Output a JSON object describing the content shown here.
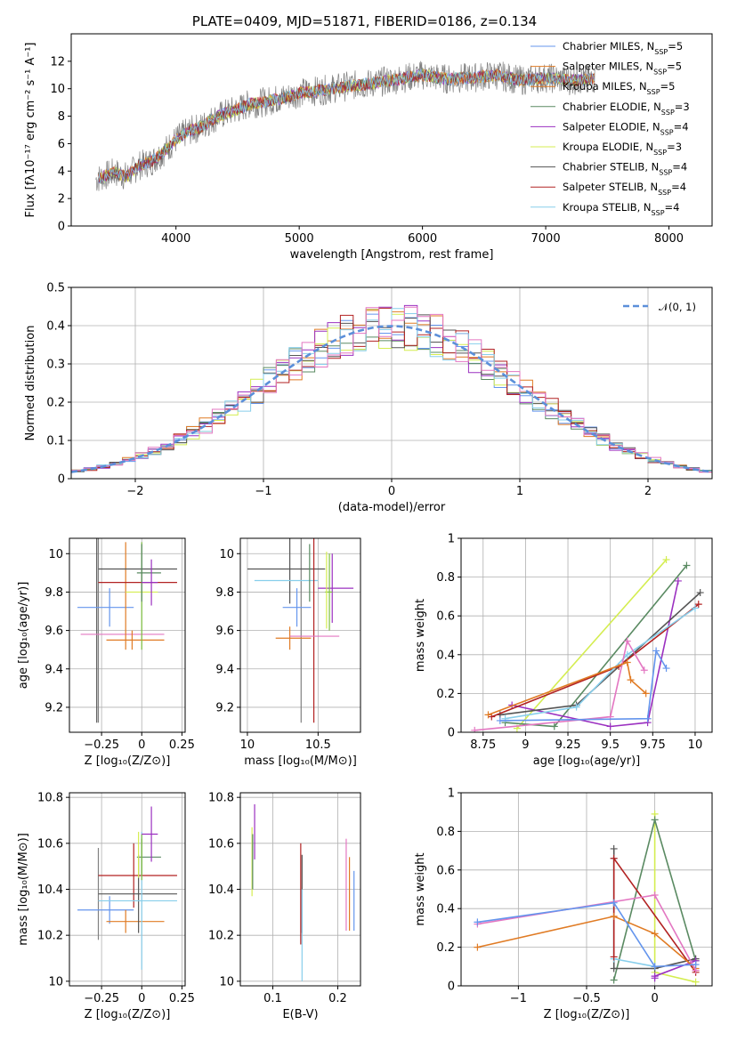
{
  "figure": {
    "title": "PLATE=0409, MJD=51871, FIBERID=0186, z=0.134"
  },
  "colors": {
    "c1": "#6495ed",
    "c2": "#e07b24",
    "c3": "#5a8a62",
    "c4": "#9b30c0",
    "c5": "#d4ed50",
    "c6": "#555555",
    "c7": "#b22222",
    "c8": "#87ceeb",
    "c9": "#e377c2",
    "c10": "#7fbf3f",
    "c11": "#808080"
  },
  "chart_data": [
    {
      "id": "spectrum",
      "type": "line",
      "xlabel": "wavelength [Angstrom, rest frame]",
      "ylabel": "Flux [fλ10⁻¹⁷ erg cm⁻² s⁻¹ A⁻¹]",
      "xlim": [
        3150,
        8350
      ],
      "ylim": [
        0,
        14
      ],
      "xticks": [
        4000,
        5000,
        6000,
        7000,
        8000
      ],
      "yticks": [
        0,
        2,
        4,
        6,
        8,
        10,
        12
      ],
      "legend_position": "top-right",
      "legend": [
        "Chabrier MILES, N_SSP=5",
        "Salpeter MILES, N_SSP=5",
        "Kroupa MILES, N_SSP=5",
        "Chabrier ELODIE, N_SSP=3",
        "Salpeter ELODIE, N_SSP=4",
        "Kroupa ELODIE, N_SSP=3",
        "Chabrier STELIB, N_SSP=4",
        "Salpeter STELIB, N_SSP=4",
        "Kroupa STELIB, N_SSP=4"
      ],
      "legend_display": [
        [
          "Chabrier MILES, N",
          "SSP",
          "=5"
        ],
        [
          "Salpeter MILES, N",
          "SSP",
          "=5"
        ],
        [
          "Kroupa MILES, N",
          "SSP",
          "=5"
        ],
        [
          "Chabrier ELODIE, N",
          "SSP",
          "=3"
        ],
        [
          "Salpeter ELODIE, N",
          "SSP",
          "=4"
        ],
        [
          "Kroupa ELODIE, N",
          "SSP",
          "=3"
        ],
        [
          "Chabrier STELIB, N",
          "SSP",
          "=4"
        ],
        [
          "Salpeter STELIB, N",
          "SSP",
          "=4"
        ],
        [
          "Kroupa STELIB, N",
          "SSP",
          "=4"
        ]
      ],
      "series_colors": [
        "c1",
        "c2",
        "c2",
        "c3",
        "c4",
        "c5",
        "c6",
        "c7",
        "c8"
      ],
      "x": [
        3350,
        3500,
        3600,
        3700,
        3800,
        3900,
        4000,
        4100,
        4200,
        4300,
        4400,
        4500,
        4600,
        4700,
        4800,
        4900,
        5000,
        5200,
        5400,
        5600,
        5800,
        6000,
        6200,
        6400,
        6600,
        6800,
        7000,
        7200,
        7400
      ],
      "y": [
        3.4,
        3.9,
        3.6,
        4.4,
        4.7,
        5.4,
        6.3,
        6.9,
        7.2,
        7.8,
        8.2,
        8.5,
        8.9,
        9.0,
        9.2,
        9.4,
        9.7,
        9.9,
        10.2,
        10.4,
        10.7,
        11.0,
        10.7,
        10.8,
        11.0,
        10.6,
        10.8,
        10.6,
        10.7
      ]
    },
    {
      "id": "residuals",
      "type": "step",
      "xlabel": "(data-model)/error",
      "ylabel": "Normed distribution",
      "xlim": [
        -2.5,
        2.5
      ],
      "ylim": [
        0,
        0.5
      ],
      "xticks": [
        -2,
        -1,
        0,
        1,
        2
      ],
      "yticks": [
        0.0,
        0.1,
        0.2,
        0.3,
        0.4,
        0.5
      ],
      "legend_display": [
        "𝒩(0, 1)"
      ]
    },
    {
      "id": "age_Z",
      "type": "errorbar",
      "xlabel": "Z [log₁₀(Z/Z⊙)]",
      "ylabel": "age  [log₁₀(age/yr)]",
      "xlim": [
        -0.45,
        0.27
      ],
      "ylim": [
        9.07,
        10.08
      ],
      "xticks": [
        -0.25,
        0.0,
        0.25
      ],
      "yticks": [
        9.2,
        9.4,
        9.6,
        9.8,
        10.0
      ],
      "points": [
        {
          "c": "c11",
          "x": -0.27,
          "y": 9.6,
          "ey": 0.48
        },
        {
          "c": "c6",
          "x": -0.28,
          "y": 9.6,
          "ey": 0.48
        },
        {
          "c": "c1",
          "x": -0.2,
          "y": 9.72,
          "xe": [
            -0.4,
            -0.05
          ],
          "ey": 0.1
        },
        {
          "c": "c9",
          "x": -0.12,
          "y": 9.58,
          "xe": [
            -0.38,
            0.14
          ]
        },
        {
          "c": "c2",
          "x": -0.06,
          "y": 9.55,
          "xe": [
            -0.22,
            0.14
          ],
          "ey": 0.05
        },
        {
          "c": "c2",
          "x": -0.1,
          "y": 9.78,
          "ey": 0.28
        },
        {
          "c": "c5",
          "x": -0.02,
          "y": 9.8,
          "xe": [
            -0.1,
            0.1
          ]
        },
        {
          "c": "c10",
          "x": 0.0,
          "y": 9.78,
          "ey": 0.28
        },
        {
          "c": "c7",
          "x": 0.05,
          "y": 9.85,
          "xe": [
            -0.27,
            0.22
          ]
        },
        {
          "c": "c6",
          "x": 0.02,
          "y": 9.92,
          "xe": [
            -0.27,
            0.22
          ]
        },
        {
          "c": "c3",
          "x": 0.0,
          "y": 9.9,
          "xe": [
            -0.03,
            0.12
          ],
          "ey": 0.15
        },
        {
          "c": "c4",
          "x": 0.06,
          "y": 9.85,
          "xe": [
            0.0,
            0.1
          ],
          "ey": 0.12
        }
      ]
    },
    {
      "id": "age_mass",
      "type": "errorbar",
      "xlabel": "mass [log₁₀(M/M⊙)]",
      "ylabel": "",
      "xlim": [
        9.95,
        10.8
      ],
      "ylim": [
        9.07,
        10.08
      ],
      "xticks": [
        10.0,
        10.5
      ],
      "yticks": [
        9.2,
        9.4,
        9.6,
        9.8,
        10.0
      ],
      "points": [
        {
          "c": "c11",
          "x": 10.38,
          "y": 9.6,
          "ey": 0.48
        },
        {
          "c": "c6",
          "x": 10.3,
          "y": 9.92,
          "xe": [
            10.0,
            10.55
          ],
          "ey": 0.18
        },
        {
          "c": "c8",
          "x": 10.33,
          "y": 9.86,
          "xe": [
            10.05,
            10.5
          ]
        },
        {
          "c": "c7",
          "x": 10.47,
          "y": 9.6,
          "ey": 0.48
        },
        {
          "c": "c2",
          "x": 10.3,
          "y": 9.56,
          "xe": [
            10.2,
            10.45
          ],
          "ey": 0.06
        },
        {
          "c": "c9",
          "x": 10.48,
          "y": 9.57,
          "xe": [
            10.3,
            10.65
          ]
        },
        {
          "c": "c1",
          "x": 10.35,
          "y": 9.72,
          "xe": [
            10.25,
            10.45
          ],
          "ey": 0.1
        },
        {
          "c": "c4",
          "x": 10.6,
          "y": 9.82,
          "xe": [
            10.5,
            10.75
          ],
          "ey": 0.18
        },
        {
          "c": "c10",
          "x": 10.58,
          "y": 9.8,
          "xe": [
            10.55,
            10.6
          ],
          "ey": 0.2
        },
        {
          "c": "c5",
          "x": 10.56,
          "y": 9.81,
          "ey": 0.2
        },
        {
          "c": "c3",
          "x": 10.44,
          "y": 9.9,
          "ey": 0.15
        }
      ]
    },
    {
      "id": "mw_age",
      "type": "line",
      "xlabel": "age  [log₁₀(age/yr)]",
      "ylabel": "mass weight",
      "xlim": [
        8.62,
        10.1
      ],
      "ylim": [
        0,
        1
      ],
      "xticks": [
        8.75,
        9.0,
        9.25,
        9.5,
        9.75,
        10.0
      ],
      "yticks": [
        0.0,
        0.2,
        0.4,
        0.6,
        0.8,
        1.0
      ],
      "series": [
        {
          "c": "c5",
          "x": [
            8.95,
            9.83
          ],
          "y": [
            0.02,
            0.89
          ]
        },
        {
          "c": "c3",
          "x": [
            8.88,
            9.17,
            9.95
          ],
          "y": [
            0.05,
            0.03,
            0.86
          ]
        },
        {
          "c": "c4",
          "x": [
            8.92,
            9.5,
            9.72,
            9.9
          ],
          "y": [
            0.14,
            0.03,
            0.05,
            0.78
          ]
        },
        {
          "c": "c6",
          "x": [
            8.85,
            9.3,
            10.03
          ],
          "y": [
            0.09,
            0.14,
            0.72
          ]
        },
        {
          "c": "c7",
          "x": [
            8.8,
            9.55,
            10.02
          ],
          "y": [
            0.08,
            0.34,
            0.66
          ]
        },
        {
          "c": "c8",
          "x": [
            8.88,
            9.3,
            9.6,
            10.0
          ],
          "y": [
            0.07,
            0.13,
            0.4,
            0.64
          ]
        },
        {
          "c": "c9",
          "x": [
            8.7,
            9.5,
            9.6,
            9.7
          ],
          "y": [
            0.01,
            0.08,
            0.47,
            0.32
          ]
        },
        {
          "c": "c2",
          "x": [
            8.78,
            9.6,
            9.62,
            9.71
          ],
          "y": [
            0.09,
            0.36,
            0.27,
            0.2
          ]
        },
        {
          "c": "c1",
          "x": [
            8.85,
            9.72,
            9.77,
            9.83
          ],
          "y": [
            0.06,
            0.07,
            0.42,
            0.33
          ]
        }
      ]
    },
    {
      "id": "mass_Z",
      "type": "errorbar",
      "xlabel": "Z [log₁₀(Z/Z⊙)]",
      "ylabel": "mass [log₁₀(M/M⊙)]",
      "xlim": [
        -0.45,
        0.27
      ],
      "ylim": [
        9.98,
        10.82
      ],
      "xticks": [
        -0.25,
        0.0,
        0.25
      ],
      "yticks": [
        10.0,
        10.2,
        10.4,
        10.6,
        10.8
      ],
      "points": [
        {
          "c": "c11",
          "x": -0.27,
          "y": 10.38,
          "ey": 0.2
        },
        {
          "c": "c1",
          "x": -0.2,
          "y": 10.31,
          "xe": [
            -0.4,
            -0.05
          ],
          "ey": 0.06
        },
        {
          "c": "c2",
          "x": -0.1,
          "y": 10.26,
          "xe": [
            -0.22,
            0.14
          ],
          "ey": 0.05
        },
        {
          "c": "c7",
          "x": -0.05,
          "y": 10.46,
          "xe": [
            -0.27,
            0.22
          ],
          "ey": 0.14
        },
        {
          "c": "c6",
          "x": -0.02,
          "y": 10.38,
          "xe": [
            -0.27,
            0.22
          ],
          "ey": 0.17
        },
        {
          "c": "c8",
          "x": 0.0,
          "y": 10.35,
          "xe": [
            -0.27,
            0.22
          ],
          "ey": 0.3
        },
        {
          "c": "c3",
          "x": 0.0,
          "y": 10.54,
          "xe": [
            -0.03,
            0.12
          ],
          "ey": 0.08
        },
        {
          "c": "c10",
          "x": 0.0,
          "y": 10.54,
          "ey": 0.1
        },
        {
          "c": "c4",
          "x": 0.06,
          "y": 10.64,
          "xe": [
            0.0,
            0.1
          ],
          "ey": 0.12
        },
        {
          "c": "c5",
          "x": -0.02,
          "y": 10.55,
          "ey": 0.1
        }
      ]
    },
    {
      "id": "mass_EBV",
      "type": "errorbar",
      "xlabel": "E(B-V)",
      "ylabel": "",
      "xlim": [
        0.05,
        0.235
      ],
      "ylim": [
        9.98,
        10.82
      ],
      "xticks": [
        0.1,
        0.2
      ],
      "yticks": [
        10.0,
        10.2,
        10.4,
        10.6,
        10.8
      ],
      "points": [
        {
          "c": "c5",
          "x": 0.068,
          "y": 10.52,
          "ey": 0.15
        },
        {
          "c": "c3",
          "x": 0.069,
          "y": 10.52,
          "ey": 0.12
        },
        {
          "c": "c4",
          "x": 0.072,
          "y": 10.65,
          "ey": 0.12
        },
        {
          "c": "c7",
          "x": 0.143,
          "y": 10.38,
          "ey": 0.22
        },
        {
          "c": "c6",
          "x": 0.145,
          "y": 10.38,
          "ey": 0.17
        },
        {
          "c": "c8",
          "x": 0.145,
          "y": 10.2,
          "ey": 0.2
        },
        {
          "c": "c9",
          "x": 0.213,
          "y": 10.42,
          "ey": 0.2
        },
        {
          "c": "c2",
          "x": 0.218,
          "y": 10.38,
          "ey": 0.16
        },
        {
          "c": "c1",
          "x": 0.225,
          "y": 10.35,
          "ey": 0.13
        }
      ]
    },
    {
      "id": "mw_Z",
      "type": "line",
      "xlabel": "Z [log₁₀(Z/Z⊙)]",
      "ylabel": "mass weight",
      "xlim": [
        -1.42,
        0.42
      ],
      "ylim": [
        0,
        1
      ],
      "xticks": [
        -1.0,
        -0.5,
        0.0
      ],
      "yticks": [
        0.0,
        0.2,
        0.4,
        0.6,
        0.8,
        1.0
      ],
      "series": [
        {
          "c": "c5",
          "x": [
            0.0,
            0.0,
            0.3
          ],
          "y": [
            0.89,
            0.07,
            0.02
          ]
        },
        {
          "c": "c3",
          "x": [
            -0.3,
            0.0,
            0.3
          ],
          "y": [
            0.03,
            0.86,
            0.13
          ]
        },
        {
          "c": "c6",
          "x": [
            -0.3,
            -0.3,
            0.0,
            0.3
          ],
          "y": [
            0.71,
            0.09,
            0.09,
            0.14
          ]
        },
        {
          "c": "c8",
          "x": [
            -0.3,
            -0.3,
            0.0
          ],
          "y": [
            0.66,
            0.14,
            0.1
          ]
        },
        {
          "c": "c7",
          "x": [
            -0.3,
            -0.3,
            0.3
          ],
          "y": [
            0.15,
            0.66,
            0.07
          ]
        },
        {
          "c": "c4",
          "x": [
            0.0,
            0.0,
            0.3
          ],
          "y": [
            0.04,
            0.05,
            0.13
          ]
        },
        {
          "c": "c2",
          "x": [
            -1.3,
            -0.3,
            0.0,
            0.3
          ],
          "y": [
            0.2,
            0.36,
            0.27,
            0.09
          ]
        },
        {
          "c": "c9",
          "x": [
            -1.3,
            0.0,
            0.3
          ],
          "y": [
            0.32,
            0.47,
            0.08
          ]
        },
        {
          "c": "c1",
          "x": [
            -1.3,
            -0.3,
            0.0,
            0.3
          ],
          "y": [
            0.33,
            0.43,
            0.1,
            0.11
          ]
        }
      ]
    }
  ]
}
